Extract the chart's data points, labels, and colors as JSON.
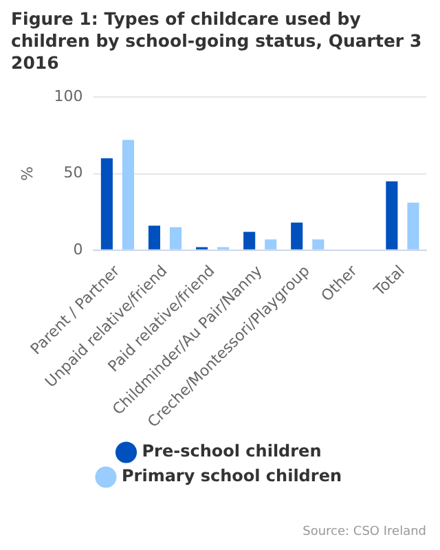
{
  "chart_data": {
    "type": "bar",
    "title": "Figure 1: Types of childcare used by children by school-going status, Quarter 3 2016",
    "ylabel": "%",
    "categories": [
      "Parent / Partner",
      "Unpaid relative/friend",
      "Paid relative/friend",
      "Childminder/Au Pair/Nanny",
      "Creche/Montessori/Playgroup",
      "Other",
      "Total"
    ],
    "series": [
      {
        "name": "Pre-school children",
        "color": "#0050bd",
        "values": [
          60,
          16,
          2,
          12,
          18,
          0,
          45
        ]
      },
      {
        "name": "Primary school children",
        "color": "#99ccff",
        "values": [
          72,
          15,
          2,
          7,
          7,
          0,
          31
        ]
      }
    ],
    "ylim": [
      0,
      100
    ],
    "yticks": [
      0,
      50,
      100
    ],
    "grid": "y",
    "legend": "bottom",
    "annotations": [
      "Source: CSO Ireland"
    ]
  }
}
